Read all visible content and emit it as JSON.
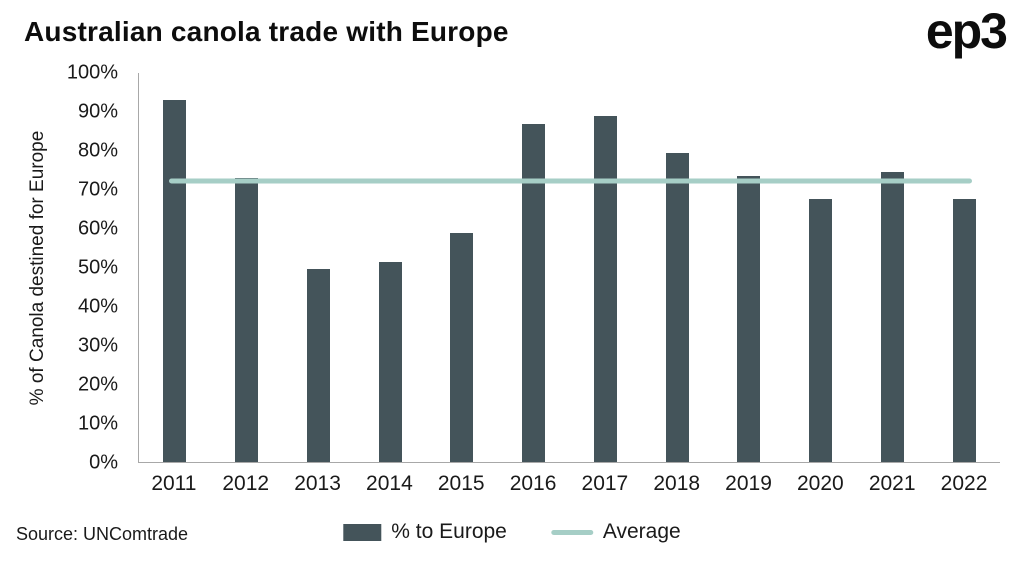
{
  "title": "Australian canola trade with Europe",
  "logo": "ep3",
  "source": "Source: UNComtrade",
  "legend": {
    "bar_label": "% to Europe",
    "line_label": "Average"
  },
  "colors": {
    "bar": "#44545a",
    "average": "#a6cec6",
    "axis": "#a8a8a8",
    "text": "#1a1a1a"
  },
  "chart_data": {
    "type": "bar",
    "title": "Australian canola trade with Europe",
    "xlabel": "",
    "ylabel": "% of Canola destined for Europe",
    "ylim": [
      0,
      100
    ],
    "grid": false,
    "legend_position": "bottom",
    "categories": [
      "2011",
      "2012",
      "2013",
      "2014",
      "2015",
      "2016",
      "2017",
      "2018",
      "2019",
      "2020",
      "2021",
      "2022"
    ],
    "series": [
      {
        "name": "% to Europe",
        "values": [
          93,
          73,
          49.5,
          51.5,
          59,
          87,
          89,
          79.5,
          73.5,
          67.5,
          74.5,
          67.5
        ]
      },
      {
        "name": "Average",
        "type": "hline",
        "value": 72.3
      }
    ],
    "yticks": [
      {
        "value": 0,
        "label": "0%"
      },
      {
        "value": 10,
        "label": "10%"
      },
      {
        "value": 20,
        "label": "20%"
      },
      {
        "value": 30,
        "label": "30%"
      },
      {
        "value": 40,
        "label": "40%"
      },
      {
        "value": 50,
        "label": "50%"
      },
      {
        "value": 60,
        "label": "60%"
      },
      {
        "value": 70,
        "label": "70%"
      },
      {
        "value": 80,
        "label": "80%"
      },
      {
        "value": 90,
        "label": "90%"
      },
      {
        "value": 100,
        "label": "100%"
      }
    ]
  }
}
